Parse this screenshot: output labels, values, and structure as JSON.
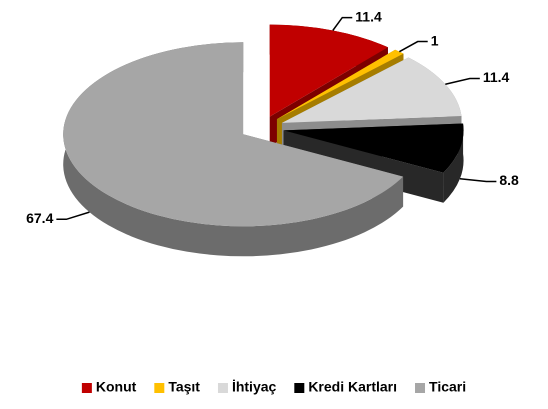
{
  "chart_data": {
    "type": "pie3d",
    "categories": [
      "Konut",
      "Taşıt",
      "İhtiyaç",
      "Kredi Kartları",
      "Ticari"
    ],
    "values": [
      11.4,
      1,
      11.4,
      8.8,
      67.4
    ],
    "colors": [
      "#c00000",
      "#ffc000",
      "#d9d9d9",
      "#000000",
      "#a6a6a6"
    ],
    "legend": "bottom"
  }
}
